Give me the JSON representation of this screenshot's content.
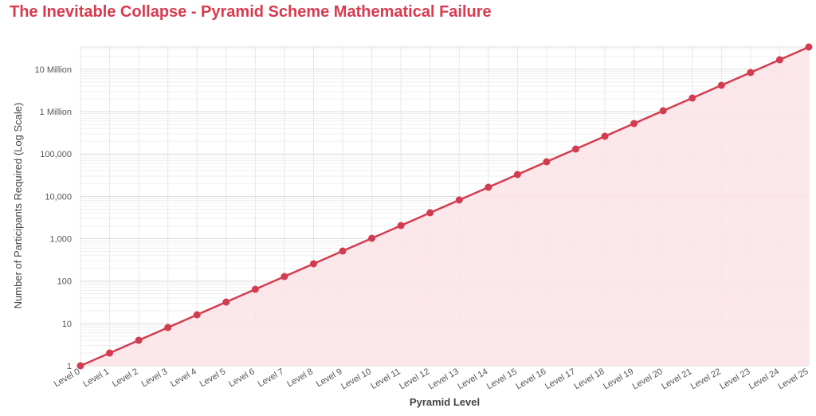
{
  "chart_data": {
    "type": "area",
    "title": "The Inevitable Collapse - Pyramid Scheme Mathematical Failure",
    "xlabel": "Pyramid Level",
    "ylabel": "Number of Participants Required (Log Scale)",
    "y_scale": "log",
    "ylim": [
      1,
      33554432
    ],
    "y_ticks": [
      1,
      10,
      100,
      1000,
      10000,
      100000,
      1000000,
      10000000
    ],
    "y_tick_labels": [
      "1",
      "10",
      "100",
      "1,000",
      "10,000",
      "100,000",
      "1 Million",
      "10 Million"
    ],
    "categories": [
      "Level 0",
      "Level 1",
      "Level 2",
      "Level 3",
      "Level 4",
      "Level 5",
      "Level 6",
      "Level 7",
      "Level 8",
      "Level 9",
      "Level 10",
      "Level 11",
      "Level 12",
      "Level 13",
      "Level 14",
      "Level 15",
      "Level 16",
      "Level 17",
      "Level 18",
      "Level 19",
      "Level 20",
      "Level 21",
      "Level 22",
      "Level 23",
      "Level 24",
      "Level 25"
    ],
    "values": [
      1,
      2,
      4,
      8,
      16,
      32,
      64,
      128,
      256,
      512,
      1024,
      2048,
      4096,
      8192,
      16384,
      32768,
      65536,
      131072,
      262144,
      524288,
      1048576,
      2097152,
      4194304,
      8388608,
      16777216,
      33554432
    ],
    "grid": true,
    "colors": {
      "line": "#d23c50",
      "fill": "#fbe3e6",
      "title": "#d83a4e",
      "grid": "#e6e6e6"
    }
  }
}
